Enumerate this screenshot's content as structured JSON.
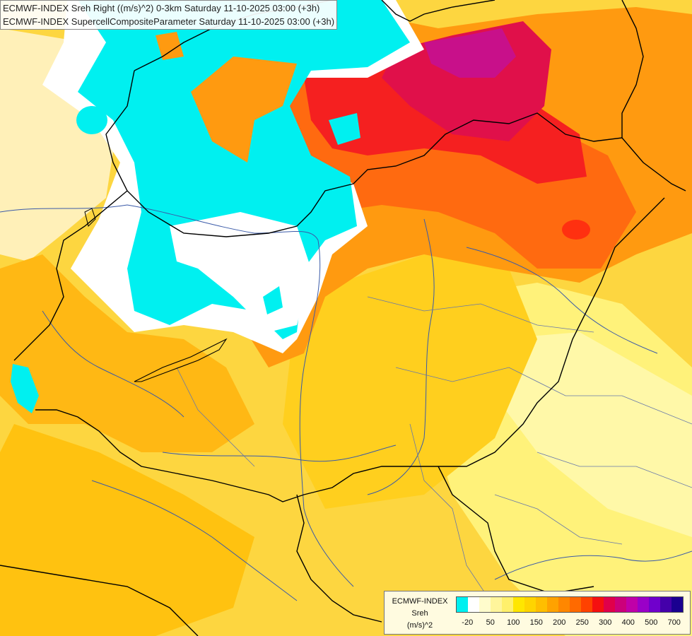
{
  "title": {
    "line1": "ECMWF-INDEX Sreh Right ((m/s)^2) 0-3km Saturday 11-10-2025 03:00 (+3h)",
    "line2": "ECMWF-INDEX SupercellCompositeParameter Saturday 11-10-2025 03:00 (+3h)"
  },
  "legend": {
    "model": "ECMWF-INDEX",
    "parameter": "Sreh",
    "unit": "(m/s)^2",
    "colors": [
      "#00f0f0",
      "#ffffff",
      "#fffccc",
      "#fff59b",
      "#fff06b",
      "#ffe600",
      "#ffd400",
      "#ffbe00",
      "#ffa200",
      "#ff8700",
      "#ff6a00",
      "#ff4200",
      "#f51010",
      "#e0004a",
      "#cc007a",
      "#c000a8",
      "#9a00c8",
      "#7000cc",
      "#4400aa",
      "#1a0090"
    ],
    "ticks": [
      "-20",
      "50",
      "100",
      "150",
      "200",
      "250",
      "300",
      "400",
      "500",
      "700"
    ]
  },
  "map": {
    "colors": {
      "cyan": "#00f0f0",
      "white": "#ffffff",
      "pale_yellow": "#fff5b0",
      "yellow": "#ffe35a",
      "gold": "#ffcc00",
      "light_orange": "#ffb000",
      "orange": "#ff9a10",
      "deep_orange": "#ff6a10",
      "red": "#f52020",
      "crimson": "#e0104a",
      "magenta": "#c8108a",
      "border": "#000000",
      "river": "#3a5aa8",
      "region": "#6677aa"
    }
  }
}
